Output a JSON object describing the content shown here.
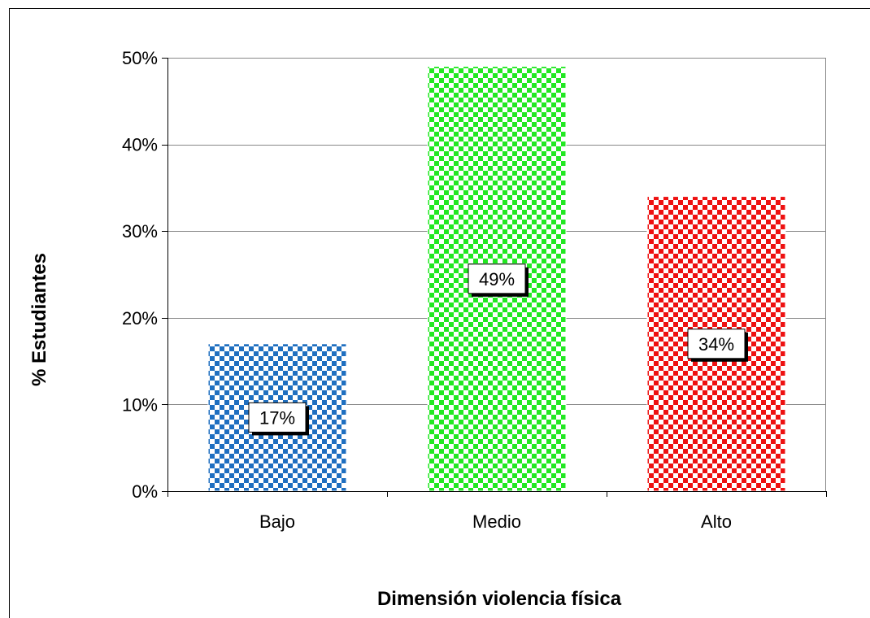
{
  "chart_data": {
    "type": "bar",
    "categories": [
      "Bajo",
      "Medio",
      "Alto"
    ],
    "values": [
      17,
      49,
      34
    ],
    "data_labels": [
      "17%",
      "49%",
      "34%"
    ],
    "colors": [
      "#1f6fc0",
      "#22e822",
      "#ee1111"
    ],
    "xlabel": "Dimensión violencia física",
    "ylabel": "% Estudiantes",
    "ylim": [
      0,
      50
    ],
    "yticks": [
      0,
      10,
      20,
      30,
      40,
      50
    ],
    "ytick_labels": [
      "0%",
      "10%",
      "20%",
      "30%",
      "40%",
      "50%"
    ],
    "grid": true,
    "legend": "none"
  }
}
